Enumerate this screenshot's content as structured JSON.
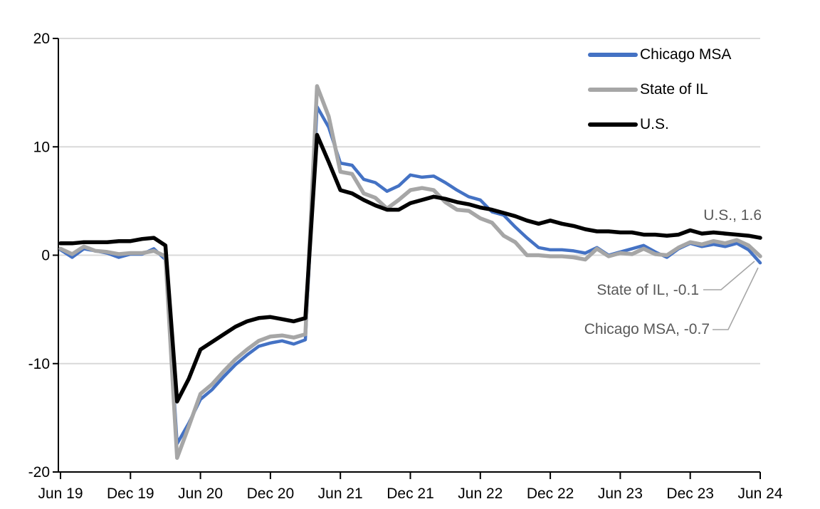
{
  "chart_data": {
    "type": "line",
    "title": "",
    "xlabel": "",
    "ylabel": "",
    "x_start_month": "Jun 2019",
    "x_end_month": "Jun 2024",
    "x_interval": "1 month",
    "x_tick_labels": [
      "Jun 19",
      "Dec 19",
      "Jun 20",
      "Dec 20",
      "Jun 21",
      "Dec 21",
      "Jun 22",
      "Dec 22",
      "Jun 23",
      "Dec 23",
      "Jun 24"
    ],
    "y_ticks": [
      20,
      10,
      0,
      -10,
      -20
    ],
    "ylim": [
      -20,
      20
    ],
    "grid": "horizontal",
    "gridline_color": "#D9D9D9",
    "legend_position": "top-right",
    "series": [
      {
        "name": "Chicago MSA",
        "color": "#4472C4",
        "end_value": -0.7,
        "values": [
          0.5,
          -0.2,
          0.6,
          0.4,
          0.2,
          -0.2,
          0.1,
          0.1,
          0.6,
          -0.4,
          -17.4,
          -15.5,
          -13.3,
          -12.4,
          -11.2,
          -10.1,
          -9.2,
          -8.4,
          -8.1,
          -7.9,
          -8.2,
          -7.8,
          13.7,
          11.8,
          8.5,
          8.3,
          7.0,
          6.7,
          5.9,
          6.4,
          7.4,
          7.2,
          7.3,
          6.7,
          6.0,
          5.4,
          5.1,
          4.0,
          3.7,
          2.6,
          1.6,
          0.7,
          0.5,
          0.5,
          0.4,
          0.2,
          0.7,
          0.0,
          0.3,
          0.6,
          0.9,
          0.3,
          -0.2,
          0.6,
          1.1,
          0.8,
          1.0,
          0.8,
          1.1,
          0.5,
          -0.7
        ]
      },
      {
        "name": "State of IL",
        "color": "#A6A6A6",
        "end_value": -0.1,
        "values": [
          0.6,
          0.1,
          0.8,
          0.4,
          0.3,
          0.1,
          0.2,
          0.2,
          0.4,
          -0.1,
          -18.7,
          -15.8,
          -12.8,
          -11.9,
          -10.7,
          -9.6,
          -8.7,
          -7.9,
          -7.5,
          -7.4,
          -7.6,
          -7.3,
          15.6,
          12.8,
          7.7,
          7.5,
          5.7,
          5.3,
          4.3,
          5.1,
          6.0,
          6.2,
          6.0,
          4.9,
          4.2,
          4.1,
          3.4,
          3.0,
          1.8,
          1.2,
          0.0,
          0.0,
          -0.1,
          -0.1,
          -0.2,
          -0.4,
          0.6,
          -0.1,
          0.2,
          0.1,
          0.6,
          0.1,
          0.0,
          0.7,
          1.2,
          1.0,
          1.3,
          1.1,
          1.4,
          0.9,
          -0.1
        ]
      },
      {
        "name": "U.S.",
        "color": "#000000",
        "end_value": 1.6,
        "values": [
          1.1,
          1.1,
          1.2,
          1.2,
          1.2,
          1.3,
          1.3,
          1.5,
          1.6,
          0.9,
          -13.5,
          -11.4,
          -8.7,
          -8.0,
          -7.3,
          -6.6,
          -6.1,
          -5.8,
          -5.7,
          -5.9,
          -6.1,
          -5.8,
          11.1,
          8.6,
          6.0,
          5.7,
          5.1,
          4.6,
          4.2,
          4.2,
          4.8,
          5.1,
          5.4,
          5.2,
          4.9,
          4.7,
          4.4,
          4.2,
          3.9,
          3.6,
          3.2,
          2.9,
          3.2,
          2.9,
          2.7,
          2.4,
          2.2,
          2.2,
          2.1,
          2.1,
          1.9,
          1.9,
          1.8,
          1.9,
          2.3,
          2.0,
          2.1,
          2.0,
          1.9,
          1.8,
          1.6
        ]
      }
    ],
    "annotations": [
      {
        "text": "U.S., 1.6",
        "series": "U.S."
      },
      {
        "text": "State of IL, -0.1",
        "series": "State of IL"
      },
      {
        "text": "Chicago MSA, -0.7",
        "series": "Chicago MSA"
      }
    ]
  }
}
